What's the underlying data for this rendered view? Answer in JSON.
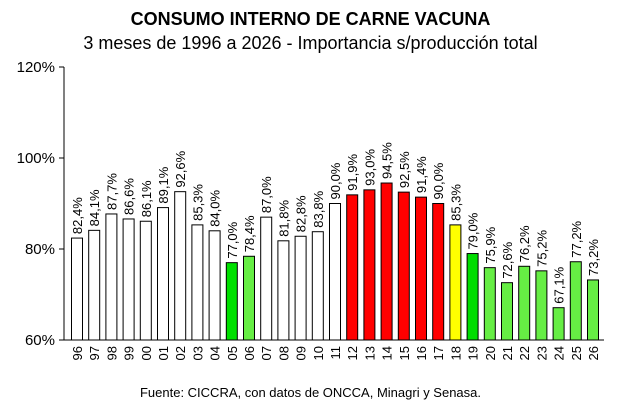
{
  "chart_data": {
    "type": "bar",
    "title": "CONSUMO INTERNO DE CARNE VACUNA",
    "subtitle": "3 meses de 1996 a 2026 - Importancia s/producción total",
    "source": "Fuente: CICCRA, con datos de ONCCA, Minagri y Senasa.",
    "xlabel": "",
    "ylabel": "",
    "ylim": [
      60,
      120
    ],
    "yticks": [
      "60%",
      "80%",
      "100%",
      "120%"
    ],
    "categories": [
      "96",
      "97",
      "98",
      "99",
      "00",
      "01",
      "02",
      "03",
      "04",
      "05",
      "06",
      "07",
      "08",
      "09",
      "10",
      "11",
      "12",
      "13",
      "14",
      "15",
      "16",
      "17",
      "18",
      "19",
      "20",
      "21",
      "22",
      "23",
      "24",
      "25",
      "26"
    ],
    "values": [
      82.4,
      84.1,
      87.7,
      86.6,
      86.1,
      89.1,
      92.6,
      85.3,
      84.0,
      77.0,
      78.4,
      87.0,
      81.8,
      82.8,
      83.8,
      90.0,
      91.9,
      93.0,
      94.5,
      92.5,
      91.4,
      90.0,
      85.3,
      79.0,
      75.9,
      72.6,
      76.2,
      75.2,
      67.1,
      77.2,
      73.2
    ],
    "labels": [
      "82,4%",
      "84,1%",
      "87,7%",
      "86,6%",
      "86,1%",
      "89,1%",
      "92,6%",
      "85,3%",
      "84,0%",
      "77,0%",
      "78,4%",
      "87,0%",
      "81,8%",
      "82,8%",
      "83,8%",
      "90,0%",
      "91,9%",
      "93,0%",
      "94,5%",
      "92,5%",
      "91,4%",
      "90,0%",
      "85,3%",
      "79,0%",
      "75,9%",
      "72,6%",
      "76,2%",
      "75,2%",
      "67,1%",
      "77,2%",
      "73,2%"
    ],
    "colors": [
      "#ffffff",
      "#ffffff",
      "#ffffff",
      "#ffffff",
      "#ffffff",
      "#ffffff",
      "#ffffff",
      "#ffffff",
      "#ffffff",
      "#00e000",
      "#66ee44",
      "#ffffff",
      "#ffffff",
      "#ffffff",
      "#ffffff",
      "#ffffff",
      "#ff0000",
      "#ff0000",
      "#ff0000",
      "#ff0000",
      "#ff0000",
      "#ff0000",
      "#ffff00",
      "#00dd00",
      "#66ee44",
      "#66ee44",
      "#66ee44",
      "#66ee44",
      "#66ee44",
      "#66ee44",
      "#66ee44"
    ],
    "grid": false
  }
}
